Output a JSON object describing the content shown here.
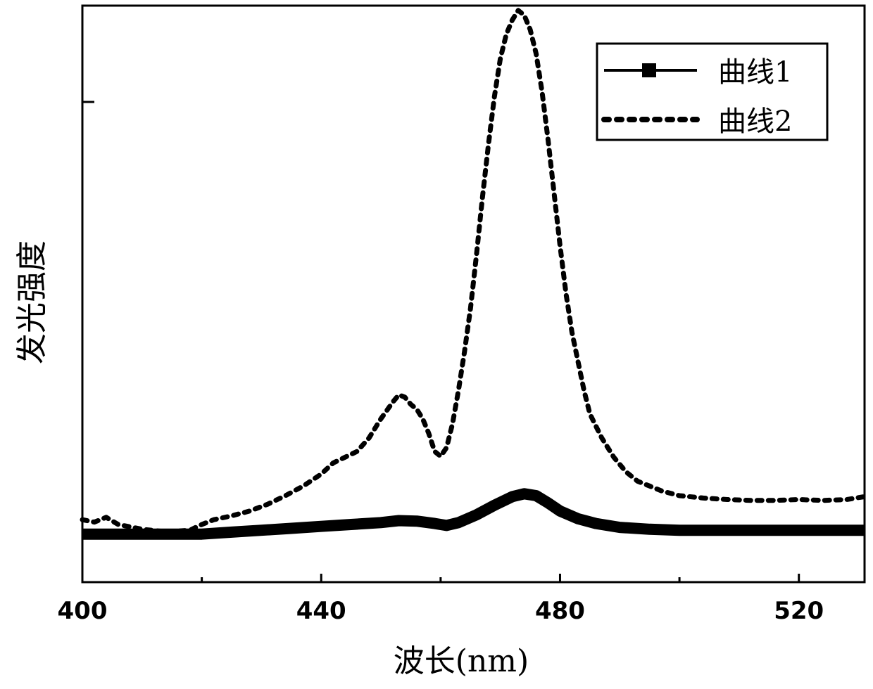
{
  "chart_data": {
    "type": "line",
    "title": "",
    "xlabel": "波长(nm)",
    "ylabel": "发光强度",
    "xlim": [
      400,
      531
    ],
    "ylim": [
      0,
      1.2
    ],
    "x_ticks": [
      400,
      440,
      480,
      520
    ],
    "x_tick_labels": [
      "400",
      "440",
      "480",
      "520"
    ],
    "x_minor_ticks": [
      420,
      460,
      500
    ],
    "y_tick_labels": [],
    "grid": false,
    "legend_position": "top-right",
    "series": [
      {
        "name": "曲线1",
        "style": "thick-solid-square-markers",
        "color": "#000000",
        "x": [
          400,
          405,
          410,
          415,
          420,
          425,
          430,
          435,
          440,
          445,
          450,
          453,
          456,
          459,
          461,
          463,
          466,
          469,
          472,
          474,
          476,
          478,
          480,
          483,
          486,
          490,
          495,
          500,
          505,
          510,
          515,
          520,
          525,
          531
        ],
        "y": [
          0.1,
          0.1,
          0.1,
          0.1,
          0.1,
          0.104,
          0.108,
          0.112,
          0.116,
          0.12,
          0.124,
          0.128,
          0.127,
          0.122,
          0.118,
          0.124,
          0.14,
          0.16,
          0.178,
          0.184,
          0.18,
          0.165,
          0.148,
          0.132,
          0.122,
          0.114,
          0.11,
          0.108,
          0.108,
          0.108,
          0.108,
          0.108,
          0.108,
          0.108
        ]
      },
      {
        "name": "曲线2",
        "style": "dotted",
        "color": "#000000",
        "x": [
          400,
          402,
          404,
          406,
          408,
          410,
          414,
          418,
          420,
          422,
          425,
          428,
          431,
          434,
          437,
          440,
          442,
          444,
          446,
          448,
          450,
          452,
          453,
          454,
          455,
          456,
          457,
          458,
          459,
          460,
          461,
          462,
          463,
          464,
          465,
          466,
          467,
          468,
          469,
          470,
          471,
          472,
          473,
          474,
          475,
          476,
          477,
          478,
          479,
          480,
          481,
          482,
          483,
          484,
          485,
          487,
          489,
          491,
          493,
          495,
          497,
          500,
          504,
          508,
          512,
          516,
          520,
          524,
          528,
          531
        ],
        "y": [
          0.13,
          0.125,
          0.135,
          0.12,
          0.115,
          0.11,
          0.105,
          0.108,
          0.12,
          0.13,
          0.138,
          0.148,
          0.162,
          0.18,
          0.2,
          0.225,
          0.248,
          0.26,
          0.272,
          0.3,
          0.34,
          0.375,
          0.39,
          0.385,
          0.37,
          0.36,
          0.34,
          0.31,
          0.272,
          0.262,
          0.28,
          0.33,
          0.4,
          0.48,
          0.57,
          0.68,
          0.8,
          0.91,
          1.01,
          1.09,
          1.14,
          1.17,
          1.19,
          1.18,
          1.15,
          1.1,
          1.02,
          0.92,
          0.81,
          0.7,
          0.6,
          0.52,
          0.46,
          0.4,
          0.35,
          0.3,
          0.26,
          0.23,
          0.21,
          0.2,
          0.19,
          0.18,
          0.175,
          0.172,
          0.17,
          0.17,
          0.172,
          0.17,
          0.172,
          0.178
        ]
      }
    ]
  }
}
